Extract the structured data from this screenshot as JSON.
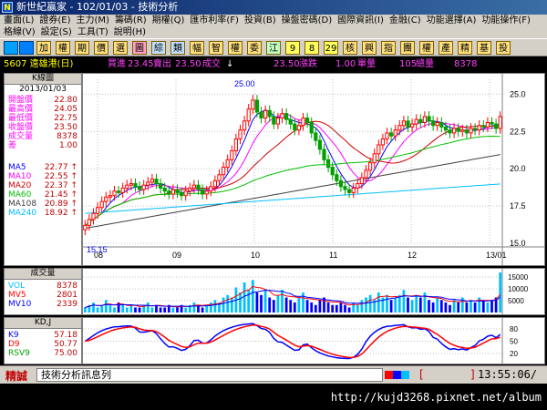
{
  "window": {
    "title": "新世紀贏家 - 102/01/03 - 技術分析"
  },
  "menu": {
    "row1": [
      "畫面(L)",
      "證券(E)",
      "主力(M)",
      "籌碼(R)",
      "期權(Q)",
      "匯市利率(F)",
      "投資(B)",
      "操盤密碼(D)",
      "國際資訊(I)",
      "金融(C)",
      "功能選擇(A)",
      "功能操作(F)"
    ],
    "row2": [
      "格線(V)",
      "設定(S)",
      "工具(T)",
      "說明(H)"
    ]
  },
  "toolbar": {
    "buttons": [
      "加",
      "權",
      "期",
      "價",
      "選",
      "圖",
      "綜",
      "類",
      "幅",
      "智",
      "權",
      "委",
      "江",
      "9",
      "8",
      "29",
      "核",
      "興",
      "指",
      "團",
      "權",
      "產",
      "精",
      "基",
      "投"
    ]
  },
  "quote": {
    "stock": "5607 遠雄港(日)",
    "bid_label": "買進",
    "bid": "23.45",
    "ask_label": "賣出",
    "ask": "23.50",
    "trade_label": "成交",
    "trade_arrow": "↓",
    "trade": "23.50",
    "change_label": "漲跌",
    "change": "1.00",
    "unit_label": "單量",
    "unit_volume": "105",
    "total_label": "總量",
    "total_volume": "8378"
  },
  "kpanel": {
    "header": "K線圖",
    "date": "2013/01/03",
    "rows": [
      {
        "label": "開盤價",
        "value": "22.80"
      },
      {
        "label": "最高價",
        "value": "24.05"
      },
      {
        "label": "最低價",
        "value": "22.75"
      },
      {
        "label": "收盤價",
        "value": "23.50"
      },
      {
        "label": "成交量",
        "value": "8378"
      },
      {
        "label": "差",
        "value": "1.00"
      }
    ],
    "ma": [
      {
        "label": "MA5",
        "value": "22.77",
        "arrow": "↑",
        "color": "#0000ff"
      },
      {
        "label": "MA10",
        "value": "22.55",
        "arrow": "↑",
        "color": "#ff00ff"
      },
      {
        "label": "MA20",
        "value": "22.37",
        "arrow": "↑",
        "color": "#d00000"
      },
      {
        "label": "MA60",
        "value": "21.45",
        "arrow": "↑",
        "color": "#00c000"
      },
      {
        "label": "MA108",
        "value": "20.89",
        "arrow": "↑",
        "color": "#404040"
      },
      {
        "label": "MA240",
        "value": "18.92",
        "arrow": "↑",
        "color": "#00c0ff"
      }
    ],
    "high_mark": "25.00",
    "low_mark": "15.15"
  },
  "volpanel": {
    "header": "成交量",
    "rows": [
      {
        "label": "VOL",
        "value": "8378",
        "color": "#00c0ff"
      },
      {
        "label": "MV5",
        "value": "2801",
        "color": "#ff0000"
      },
      {
        "label": "MV10",
        "value": "2339",
        "color": "#0000ff"
      }
    ]
  },
  "kdpanel": {
    "header": "KD,J",
    "rows": [
      {
        "label": "K9",
        "value": "57.18",
        "color": "#0000ff"
      },
      {
        "label": "D9",
        "value": "50.77",
        "color": "#ff0000"
      },
      {
        "label": "RSV9",
        "value": "75.00",
        "color": "#00a000"
      }
    ]
  },
  "chart_data": [
    {
      "type": "candlestick",
      "title": "",
      "x_labels": [
        "08",
        "09",
        "10",
        "11",
        "12",
        "13/01"
      ],
      "ylim": [
        15,
        26
      ],
      "y_ticks": [
        "25.0",
        "22.5",
        "20.0",
        "17.5",
        "15.0"
      ],
      "grid": true,
      "closes": [
        16.2,
        16.6,
        17.0,
        17.4,
        17.8,
        18.1,
        18.2,
        18.5,
        18.4,
        18.7,
        18.9,
        19.0,
        18.8,
        18.6,
        18.9,
        19.1,
        19.3,
        19.0,
        18.7,
        18.5,
        18.3,
        18.6,
        18.4,
        18.2,
        18.5,
        18.7,
        18.9,
        18.6,
        18.3,
        18.5,
        18.8,
        19.2,
        19.6,
        20.1,
        20.6,
        21.2,
        22.0,
        22.6,
        23.2,
        24.0,
        24.6,
        23.8,
        23.4,
        23.9,
        23.5,
        23.0,
        23.4,
        23.7,
        23.3,
        23.0,
        22.6,
        22.9,
        23.4,
        23.1,
        22.4,
        21.9,
        21.3,
        20.6,
        20.1,
        19.6,
        19.2,
        18.8,
        18.6,
        18.4,
        18.7,
        19.0,
        19.4,
        19.9,
        20.4,
        21.0,
        21.6,
        22.0,
        22.4,
        22.2,
        22.6,
        22.9,
        23.2,
        22.8,
        23.0,
        23.3,
        23.1,
        23.5,
        23.2,
        22.9,
        23.1,
        22.8,
        22.6,
        22.4,
        22.7,
        22.5,
        22.6,
        22.4,
        22.7,
        22.6,
        22.9,
        22.8,
        23.1,
        23.0,
        22.7,
        23.5
      ],
      "volumes": [
        2,
        3,
        4,
        2,
        3,
        5,
        3,
        2,
        4,
        3,
        2,
        3,
        2,
        2,
        3,
        4,
        2,
        3,
        2,
        2,
        3,
        2,
        2,
        3,
        2,
        3,
        4,
        3,
        2,
        3,
        4,
        5,
        4,
        6,
        7,
        6,
        10,
        8,
        12,
        9,
        13,
        8,
        7,
        9,
        6,
        5,
        7,
        9,
        6,
        5,
        4,
        6,
        8,
        5,
        4,
        3,
        5,
        6,
        4,
        3,
        3,
        4,
        3,
        2,
        4,
        3,
        5,
        6,
        7,
        5,
        8,
        6,
        7,
        5,
        6,
        7,
        9,
        6,
        5,
        7,
        6,
        8,
        5,
        4,
        6,
        5,
        4,
        3,
        5,
        4,
        6,
        4,
        5,
        4,
        6,
        5,
        4,
        5,
        6,
        16
      ],
      "ma": [
        {
          "name": "MA5",
          "color": "#0000ff"
        },
        {
          "name": "MA10",
          "color": "#ff00ff"
        },
        {
          "name": "MA20",
          "color": "#d00000"
        },
        {
          "name": "MA60",
          "color": "#00c000"
        },
        {
          "name": "MA108",
          "color": "#404040"
        },
        {
          "name": "MA240",
          "color": "#00c0ff"
        }
      ]
    },
    {
      "type": "bar",
      "title": "",
      "y_ticks": [
        "15000",
        "10000",
        "5000"
      ],
      "ylim": [
        0,
        17000
      ]
    },
    {
      "type": "line",
      "title": "",
      "y_ticks": [
        "80",
        "50",
        "20"
      ],
      "ylim": [
        0,
        100
      ],
      "series": [
        {
          "name": "K9",
          "color": "#0000ff"
        },
        {
          "name": "D9",
          "color": "#ff0000"
        }
      ]
    }
  ],
  "status": {
    "label": "精誠",
    "message": "技術分析訊息列",
    "bracket_open": "[",
    "bracket_close": "]",
    "time": "13:55:06/"
  },
  "url": {
    "text": "http://kujd3268.pixnet.net/album"
  },
  "colors": {
    "up": "#ff0000",
    "down": "#00a000",
    "ma5": "#0000ff"
  }
}
